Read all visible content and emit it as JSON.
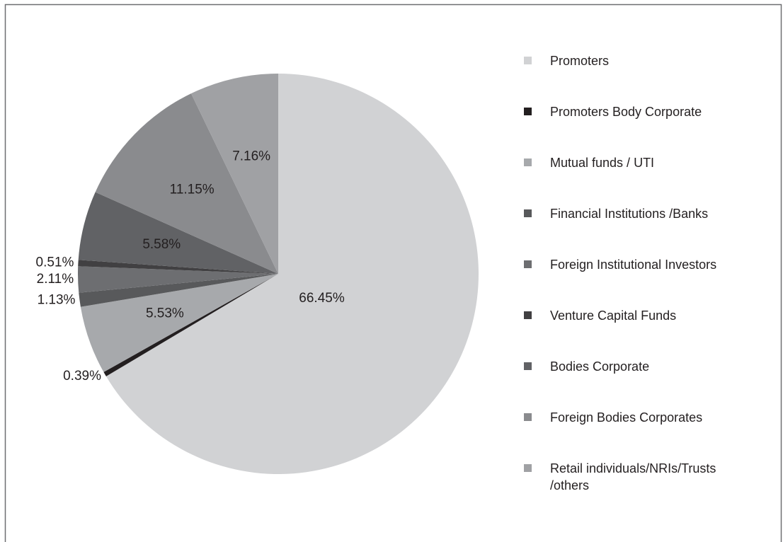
{
  "chart_data": {
    "type": "pie",
    "categories": [
      "Promoters",
      "Promoters Body Corporate",
      "Mutual funds / UTI",
      "Financial Institutions /Banks",
      "Foreign Institutional Investors",
      "Venture Capital Funds",
      "Bodies Corporate",
      "Foreign Bodies Corporates",
      "Retail individuals/NRIs/Trusts /others"
    ],
    "values": [
      66.45,
      0.39,
      5.53,
      1.13,
      2.11,
      0.51,
      5.58,
      11.15,
      7.16
    ],
    "value_labels": [
      "66.45%",
      "0.39%",
      "5.53%",
      "1.13%",
      "2.11%",
      "0.51%",
      "5.58%",
      "11.15%",
      "7.16%"
    ],
    "colors": [
      "#d1d2d4",
      "#231f20",
      "#a7a9ac",
      "#58595b",
      "#6d6e71",
      "#414042",
      "#616265",
      "#8a8b8e",
      "#a0a1a4"
    ],
    "legend": "right"
  }
}
